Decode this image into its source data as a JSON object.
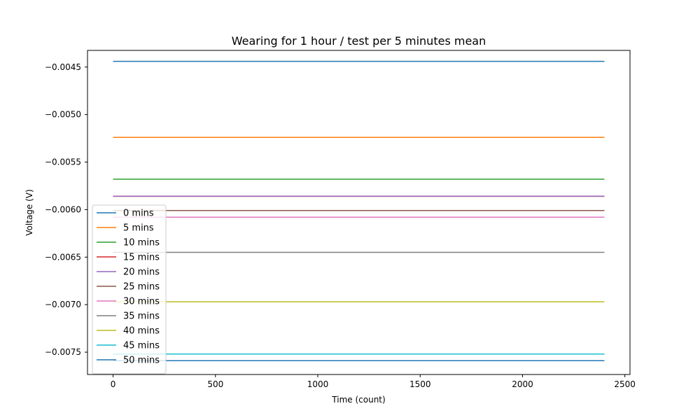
{
  "chart_data": {
    "type": "line",
    "title": "Wearing for 1 hour / test per 5 minutes mean",
    "xlabel": "Time (count)",
    "ylabel": "Voltage (V)",
    "xlim": [
      -125,
      2525
    ],
    "ylim": [
      -0.007735,
      -0.004325
    ],
    "x_ticks": [
      0,
      500,
      1000,
      1500,
      2000,
      2500
    ],
    "y_ticks": [
      -0.0045,
      -0.005,
      -0.0055,
      -0.006,
      -0.0065,
      -0.007,
      -0.0075
    ],
    "x_tick_labels": [
      "0",
      "500",
      "1000",
      "1500",
      "2000",
      "2500"
    ],
    "y_tick_labels": [
      "−0.0045",
      "−0.0050",
      "−0.0055",
      "−0.0060",
      "−0.0065",
      "−0.0070",
      "−0.0075"
    ],
    "x_range": [
      0,
      2400
    ],
    "grid": false,
    "legend_position": "lower-left",
    "series": [
      {
        "name": "0 mins",
        "color": "#1f77b4",
        "x": [
          0,
          2400
        ],
        "values": [
          -0.00444,
          -0.00444
        ]
      },
      {
        "name": "5 mins",
        "color": "#ff7f0e",
        "x": [
          0,
          2400
        ],
        "values": [
          -0.00524,
          -0.00524
        ]
      },
      {
        "name": "10 mins",
        "color": "#2ca02c",
        "x": [
          0,
          2400
        ],
        "values": [
          -0.00568,
          -0.00568
        ]
      },
      {
        "name": "15 mins",
        "color": "#d62728",
        "x": [
          0,
          2400
        ],
        "values": [
          -0.00586,
          -0.00586
        ]
      },
      {
        "name": "20 mins",
        "color": "#9467bd",
        "x": [
          0,
          2400
        ],
        "values": [
          -0.00586,
          -0.00586
        ]
      },
      {
        "name": "25 mins",
        "color": "#8c564b",
        "x": [
          0,
          2400
        ],
        "values": [
          -0.00601,
          -0.00601
        ]
      },
      {
        "name": "30 mins",
        "color": "#e377c2",
        "x": [
          0,
          2400
        ],
        "values": [
          -0.00608,
          -0.00608
        ]
      },
      {
        "name": "35 mins",
        "color": "#7f7f7f",
        "x": [
          0,
          2400
        ],
        "values": [
          -0.00645,
          -0.00645
        ]
      },
      {
        "name": "40 mins",
        "color": "#bcbd22",
        "x": [
          0,
          2400
        ],
        "values": [
          -0.00697,
          -0.00697
        ]
      },
      {
        "name": "45 mins",
        "color": "#17becf",
        "x": [
          0,
          2400
        ],
        "values": [
          -0.00752,
          -0.00752
        ]
      },
      {
        "name": "50 mins",
        "color": "#1f77b4",
        "x": [
          0,
          2400
        ],
        "values": [
          -0.00759,
          -0.00759
        ]
      }
    ]
  }
}
